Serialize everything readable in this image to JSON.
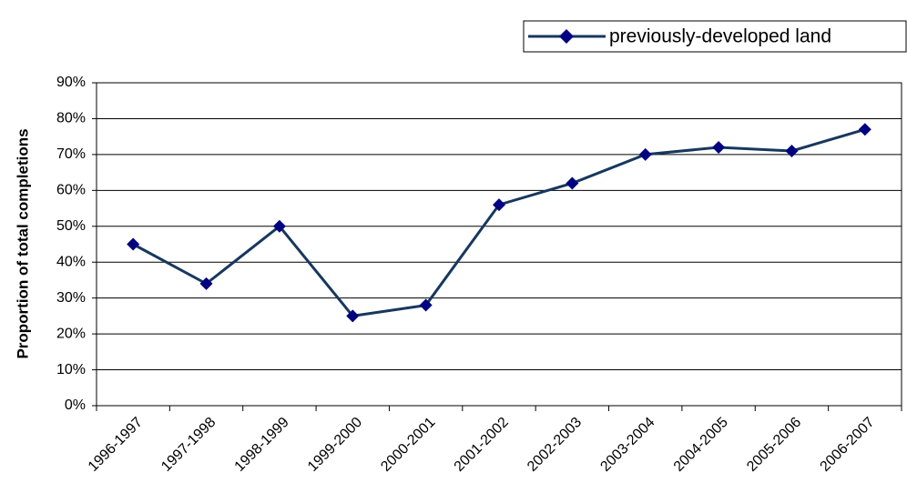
{
  "chart_data": {
    "type": "line",
    "y_label": "Proportion of total completions",
    "categories": [
      "1996-1997",
      "1997-1998",
      "1998-1999",
      "1999-2000",
      "2000-2001",
      "2001-2002",
      "2002-2003",
      "2003-2004",
      "2004-2005",
      "2005-2006",
      "2006-2007"
    ],
    "series": [
      {
        "name": "previously-developed land",
        "color": "#17375e",
        "marker_color": "#000080",
        "values": [
          45,
          34,
          50,
          25,
          28,
          56,
          62,
          70,
          72,
          71,
          77
        ]
      }
    ],
    "ylim": [
      0,
      90
    ],
    "yticks": [
      {
        "value": 0,
        "label": "0%"
      },
      {
        "value": 10,
        "label": "10%"
      },
      {
        "value": 20,
        "label": "20%"
      },
      {
        "value": 30,
        "label": "30%"
      },
      {
        "value": 40,
        "label": "40%"
      },
      {
        "value": 50,
        "label": "50%"
      },
      {
        "value": 60,
        "label": "60%"
      },
      {
        "value": 70,
        "label": "70%"
      },
      {
        "value": 80,
        "label": "80%"
      },
      {
        "value": 90,
        "label": "90%"
      }
    ],
    "grid": true,
    "legend": "top-right"
  }
}
